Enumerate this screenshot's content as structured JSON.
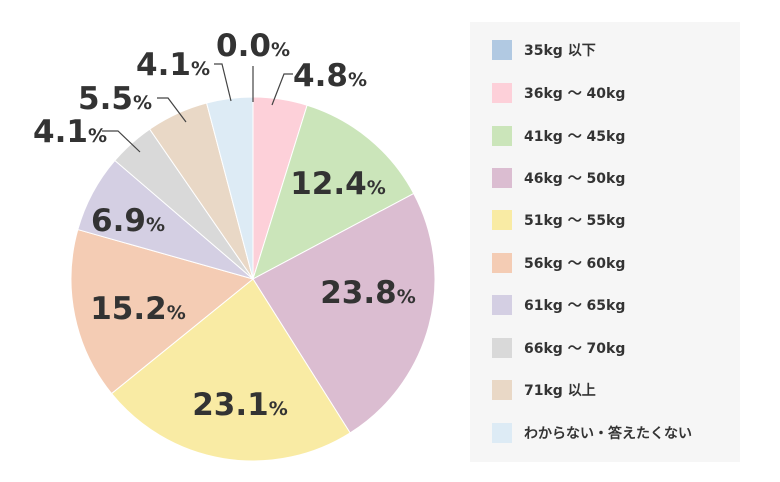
{
  "chart_data": {
    "type": "pie",
    "title": "",
    "legend_position": "right",
    "unit": "%",
    "slices": [
      {
        "label": "35kg 以下",
        "value": 0.0,
        "value_label": "0.0",
        "color": "#b1c9e2"
      },
      {
        "label": "36kg ～ 40kg",
        "value": 4.8,
        "value_label": "4.8",
        "color": "#fdd0d9"
      },
      {
        "label": "41kg ～ 45kg",
        "value": 12.4,
        "value_label": "12.4",
        "color": "#cbe5ba"
      },
      {
        "label": "46kg ～ 50kg",
        "value": 23.8,
        "value_label": "23.8",
        "color": "#dbbdd1"
      },
      {
        "label": "51kg ～ 55kg",
        "value": 23.1,
        "value_label": "23.1",
        "color": "#f9eba4"
      },
      {
        "label": "56kg ～ 60kg",
        "value": 15.2,
        "value_label": "15.2",
        "color": "#f4ccb4"
      },
      {
        "label": "61kg ～ 65kg",
        "value": 6.9,
        "value_label": "6.9",
        "color": "#d4cfe3"
      },
      {
        "label": "66kg ～ 70kg",
        "value": 4.1,
        "value_label": "4.1",
        "color": "#d9d9d9"
      },
      {
        "label": "71kg 以上",
        "value": 5.5,
        "value_label": "5.5",
        "color": "#e9d8c6"
      },
      {
        "label": "わからない・答えたくない",
        "value": 4.1,
        "value_label": "4.1",
        "color": "#ddebf5"
      }
    ]
  }
}
